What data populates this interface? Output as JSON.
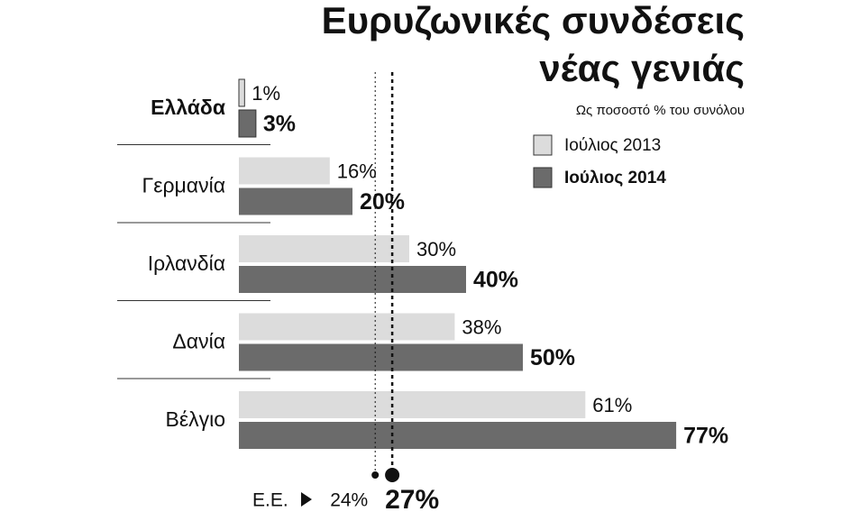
{
  "chart_data": {
    "type": "hbar",
    "title_lines": [
      "Ευρυζωνικές συνδέσεις",
      "νέας γενιάς"
    ],
    "subtitle": "Ως ποσοστό % του συνόλου",
    "categories": [
      "Ελλάδα",
      "Γερμανία",
      "Ιρλανδία",
      "Δανία",
      "Βέλγιο"
    ],
    "series": [
      {
        "name": "Ιούλιος 2013",
        "color": "#dcdcdc",
        "values": [
          1,
          16,
          30,
          38,
          61
        ],
        "value_labels": [
          "1%",
          "16%",
          "30%",
          "38%",
          "61%"
        ]
      },
      {
        "name": "Ιούλιος 2014",
        "color": "#6b6b6b",
        "values": [
          3,
          20,
          40,
          50,
          77
        ],
        "value_labels": [
          "3%",
          "20%",
          "40%",
          "50%",
          "77%"
        ]
      }
    ],
    "xlim": [
      0,
      80
    ],
    "reference": {
      "label": "Ε.Ε.",
      "values": [
        24,
        27
      ],
      "value_labels": [
        "24%",
        "27%"
      ]
    }
  }
}
